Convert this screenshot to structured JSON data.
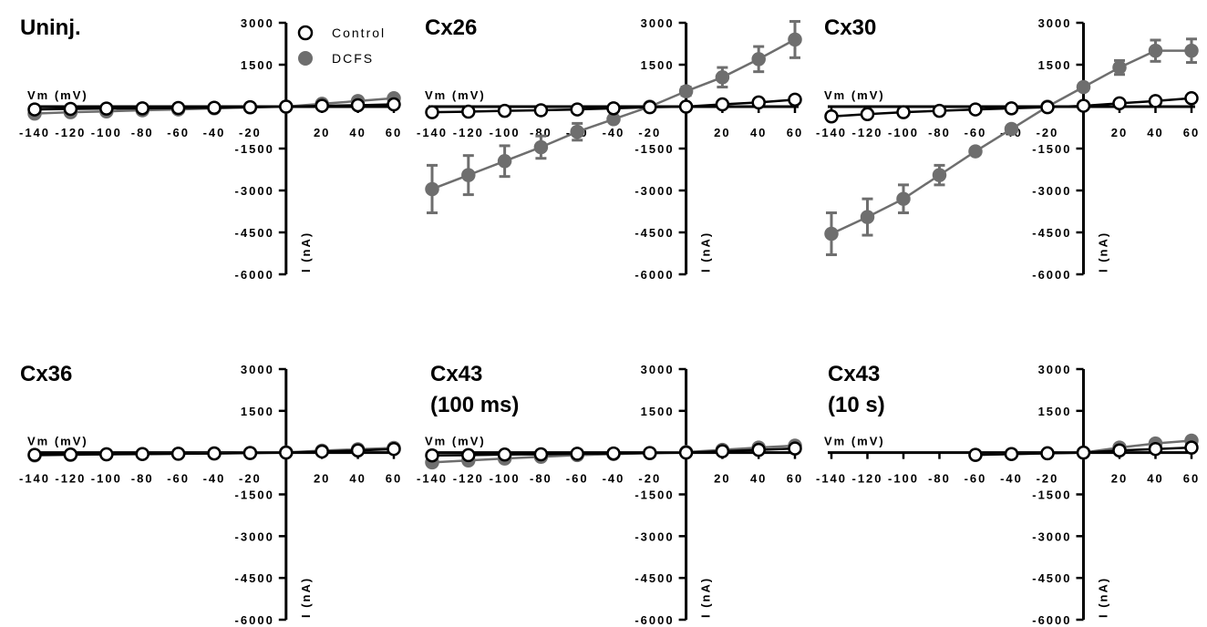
{
  "legend": [
    {
      "label": "Control",
      "marker": "open-circle",
      "color": "#000000"
    },
    {
      "label": "DCFS",
      "marker": "filled-circle",
      "color": "#6e6e6e"
    }
  ],
  "colors": {
    "control": "#000000",
    "dcfs": "#6e6e6e"
  },
  "chart_data": [
    {
      "type": "line",
      "title": "Uninj.",
      "xlabel": "Vm (mV)",
      "ylabel": "I (nA)",
      "xlim": [
        -140,
        60
      ],
      "ylim": [
        -6000,
        3000
      ],
      "x_ticks": [
        -140,
        -120,
        -100,
        -80,
        -60,
        -40,
        -20,
        20,
        40,
        60
      ],
      "y_ticks": [
        3000,
        1500,
        -1500,
        -3000,
        -4500,
        -6000
      ],
      "series": [
        {
          "name": "Control",
          "x": [
            -140,
            -120,
            -100,
            -80,
            -60,
            -40,
            -20,
            0,
            20,
            40,
            60
          ],
          "y": [
            -100,
            -80,
            -70,
            -60,
            -50,
            -40,
            -20,
            0,
            30,
            50,
            80
          ]
        },
        {
          "name": "DCFS",
          "x": [
            -140,
            -120,
            -100,
            -80,
            -60,
            -40,
            -20,
            0,
            20,
            40,
            60
          ],
          "y": [
            -250,
            -200,
            -170,
            -130,
            -100,
            -60,
            -30,
            0,
            100,
            200,
            300
          ]
        }
      ]
    },
    {
      "type": "line",
      "title": "Cx26",
      "xlabel": "Vm (mV)",
      "ylabel": "I (nA)",
      "xlim": [
        -140,
        60
      ],
      "ylim": [
        -6000,
        3000
      ],
      "x_ticks": [
        -140,
        -120,
        -100,
        -80,
        -60,
        -40,
        -20,
        20,
        40,
        60
      ],
      "y_ticks": [
        3000,
        1500,
        -1500,
        -3000,
        -4500,
        -6000
      ],
      "series": [
        {
          "name": "Control",
          "x": [
            -140,
            -120,
            -100,
            -80,
            -60,
            -40,
            -20,
            0,
            20,
            40,
            60
          ],
          "y": [
            -200,
            -180,
            -150,
            -130,
            -100,
            -60,
            -20,
            0,
            80,
            150,
            250
          ]
        },
        {
          "name": "DCFS",
          "x": [
            -140,
            -120,
            -100,
            -80,
            -60,
            -40,
            -20,
            0,
            20,
            40,
            60
          ],
          "y": [
            -2950,
            -2450,
            -1950,
            -1450,
            -900,
            -450,
            0,
            550,
            1050,
            1700,
            2400
          ],
          "err": [
            850,
            700,
            550,
            400,
            300,
            100,
            80,
            150,
            350,
            450,
            650
          ]
        }
      ]
    },
    {
      "type": "line",
      "title": "Cx30",
      "xlabel": "Vm (mV)",
      "ylabel": "I (nA)",
      "xlim": [
        -140,
        60
      ],
      "ylim": [
        -6000,
        3000
      ],
      "x_ticks": [
        -140,
        -120,
        -100,
        -80,
        -60,
        -40,
        -20,
        20,
        40,
        60
      ],
      "y_ticks": [
        3000,
        1500,
        -1500,
        -3000,
        -4500,
        -6000
      ],
      "series": [
        {
          "name": "Control",
          "x": [
            -140,
            -120,
            -100,
            -80,
            -60,
            -40,
            -20,
            0,
            20,
            40,
            60
          ],
          "y": [
            -350,
            -270,
            -200,
            -150,
            -100,
            -60,
            -20,
            30,
            120,
            200,
            300
          ]
        },
        {
          "name": "DCFS",
          "x": [
            -140,
            -120,
            -100,
            -80,
            -60,
            -40,
            -20,
            0,
            20,
            40,
            60
          ],
          "y": [
            -4550,
            -3950,
            -3300,
            -2450,
            -1600,
            -800,
            0,
            700,
            1400,
            2000,
            2000
          ],
          "err": [
            750,
            650,
            500,
            350,
            100,
            80,
            60,
            120,
            250,
            380,
            420
          ]
        }
      ]
    },
    {
      "type": "line",
      "title": "Cx36",
      "xlabel": "Vm (mV)",
      "ylabel": "I (nA)",
      "xlim": [
        -140,
        60
      ],
      "ylim": [
        -6000,
        3000
      ],
      "x_ticks": [
        -140,
        -120,
        -100,
        -80,
        -60,
        -40,
        -20,
        20,
        40,
        60
      ],
      "y_ticks": [
        3000,
        1500,
        -1500,
        -3000,
        -4500,
        -6000
      ],
      "series": [
        {
          "name": "Control",
          "x": [
            -140,
            -120,
            -100,
            -80,
            -60,
            -40,
            -20,
            0,
            20,
            40,
            60
          ],
          "y": [
            -80,
            -70,
            -60,
            -50,
            -40,
            -30,
            -15,
            0,
            40,
            80,
            130
          ]
        },
        {
          "name": "DCFS",
          "x": [
            -140,
            -120,
            -100,
            -80,
            -60,
            -40,
            -20,
            0,
            20,
            40,
            60
          ],
          "y": [
            -100,
            -80,
            -60,
            -50,
            -40,
            -25,
            -10,
            10,
            70,
            120,
            170
          ]
        }
      ]
    },
    {
      "type": "line",
      "title": "Cx43",
      "subtitle": "(100 ms)",
      "xlabel": "Vm (mV)",
      "ylabel": "I (nA)",
      "xlim": [
        -140,
        60
      ],
      "ylim": [
        -6000,
        3000
      ],
      "x_ticks": [
        -140,
        -120,
        -100,
        -80,
        -60,
        -40,
        -20,
        20,
        40,
        60
      ],
      "y_ticks": [
        3000,
        1500,
        -1500,
        -3000,
        -4500,
        -6000
      ],
      "series": [
        {
          "name": "Control",
          "x": [
            -140,
            -120,
            -100,
            -80,
            -60,
            -40,
            -20,
            0,
            20,
            40,
            60
          ],
          "y": [
            -100,
            -90,
            -70,
            -60,
            -40,
            -30,
            -15,
            0,
            50,
            100,
            150
          ]
        },
        {
          "name": "DCFS",
          "x": [
            -140,
            -120,
            -100,
            -80,
            -60,
            -40,
            -20,
            0,
            20,
            40,
            60
          ],
          "y": [
            -350,
            -280,
            -210,
            -150,
            -90,
            -50,
            -20,
            20,
            100,
            180,
            250
          ]
        }
      ]
    },
    {
      "type": "line",
      "title": "Cx43",
      "subtitle": "(10 s)",
      "xlabel": "Vm (mV)",
      "ylabel": "I (nA)",
      "xlim": [
        -140,
        60
      ],
      "ylim": [
        -6000,
        3000
      ],
      "x_ticks": [
        -140,
        -120,
        -100,
        -80,
        -60,
        -40,
        -20,
        20,
        40,
        60
      ],
      "y_ticks": [
        3000,
        1500,
        -1500,
        -3000,
        -4500,
        -6000
      ],
      "series": [
        {
          "name": "Control",
          "x": [
            -60,
            -40,
            -20,
            0,
            20,
            40,
            60
          ],
          "y": [
            -80,
            -50,
            -25,
            0,
            80,
            130,
            180
          ]
        },
        {
          "name": "DCFS",
          "x": [
            -60,
            -40,
            -20,
            0,
            20,
            40,
            60
          ],
          "y": [
            -80,
            -50,
            -25,
            0,
            180,
            330,
            430
          ]
        }
      ]
    }
  ]
}
